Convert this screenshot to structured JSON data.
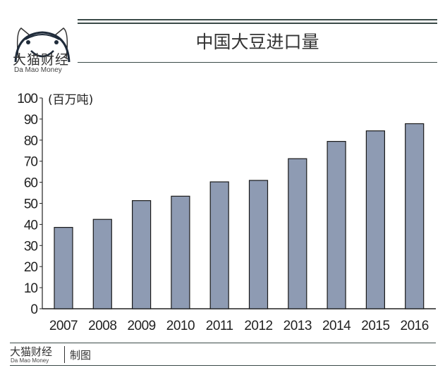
{
  "brand": {
    "name_cn": "大猫财经",
    "name_en": "Da Mao Money"
  },
  "footer": {
    "brand_cn": "大猫财经",
    "brand_en": "Da Mao Money",
    "credit": "制图"
  },
  "colors": {
    "bar": "#8e9bb3",
    "bar_stroke": "#1a1a1a",
    "rule": "#3b4a48"
  },
  "chart_data": {
    "type": "bar",
    "title": "中国大豆进口量",
    "ylabel": "(百万吨)",
    "xlabel": "",
    "categories": [
      "2007",
      "2008",
      "2009",
      "2010",
      "2011",
      "2012",
      "2013",
      "2014",
      "2015",
      "2016"
    ],
    "values": [
      38.6,
      42.4,
      51.3,
      53.4,
      60.2,
      60.9,
      71.2,
      79.4,
      84.4,
      87.8
    ],
    "ylim": [
      0,
      100
    ],
    "yticks": [
      0,
      10,
      20,
      30,
      40,
      50,
      60,
      70,
      80,
      90,
      100
    ],
    "grid": false
  }
}
